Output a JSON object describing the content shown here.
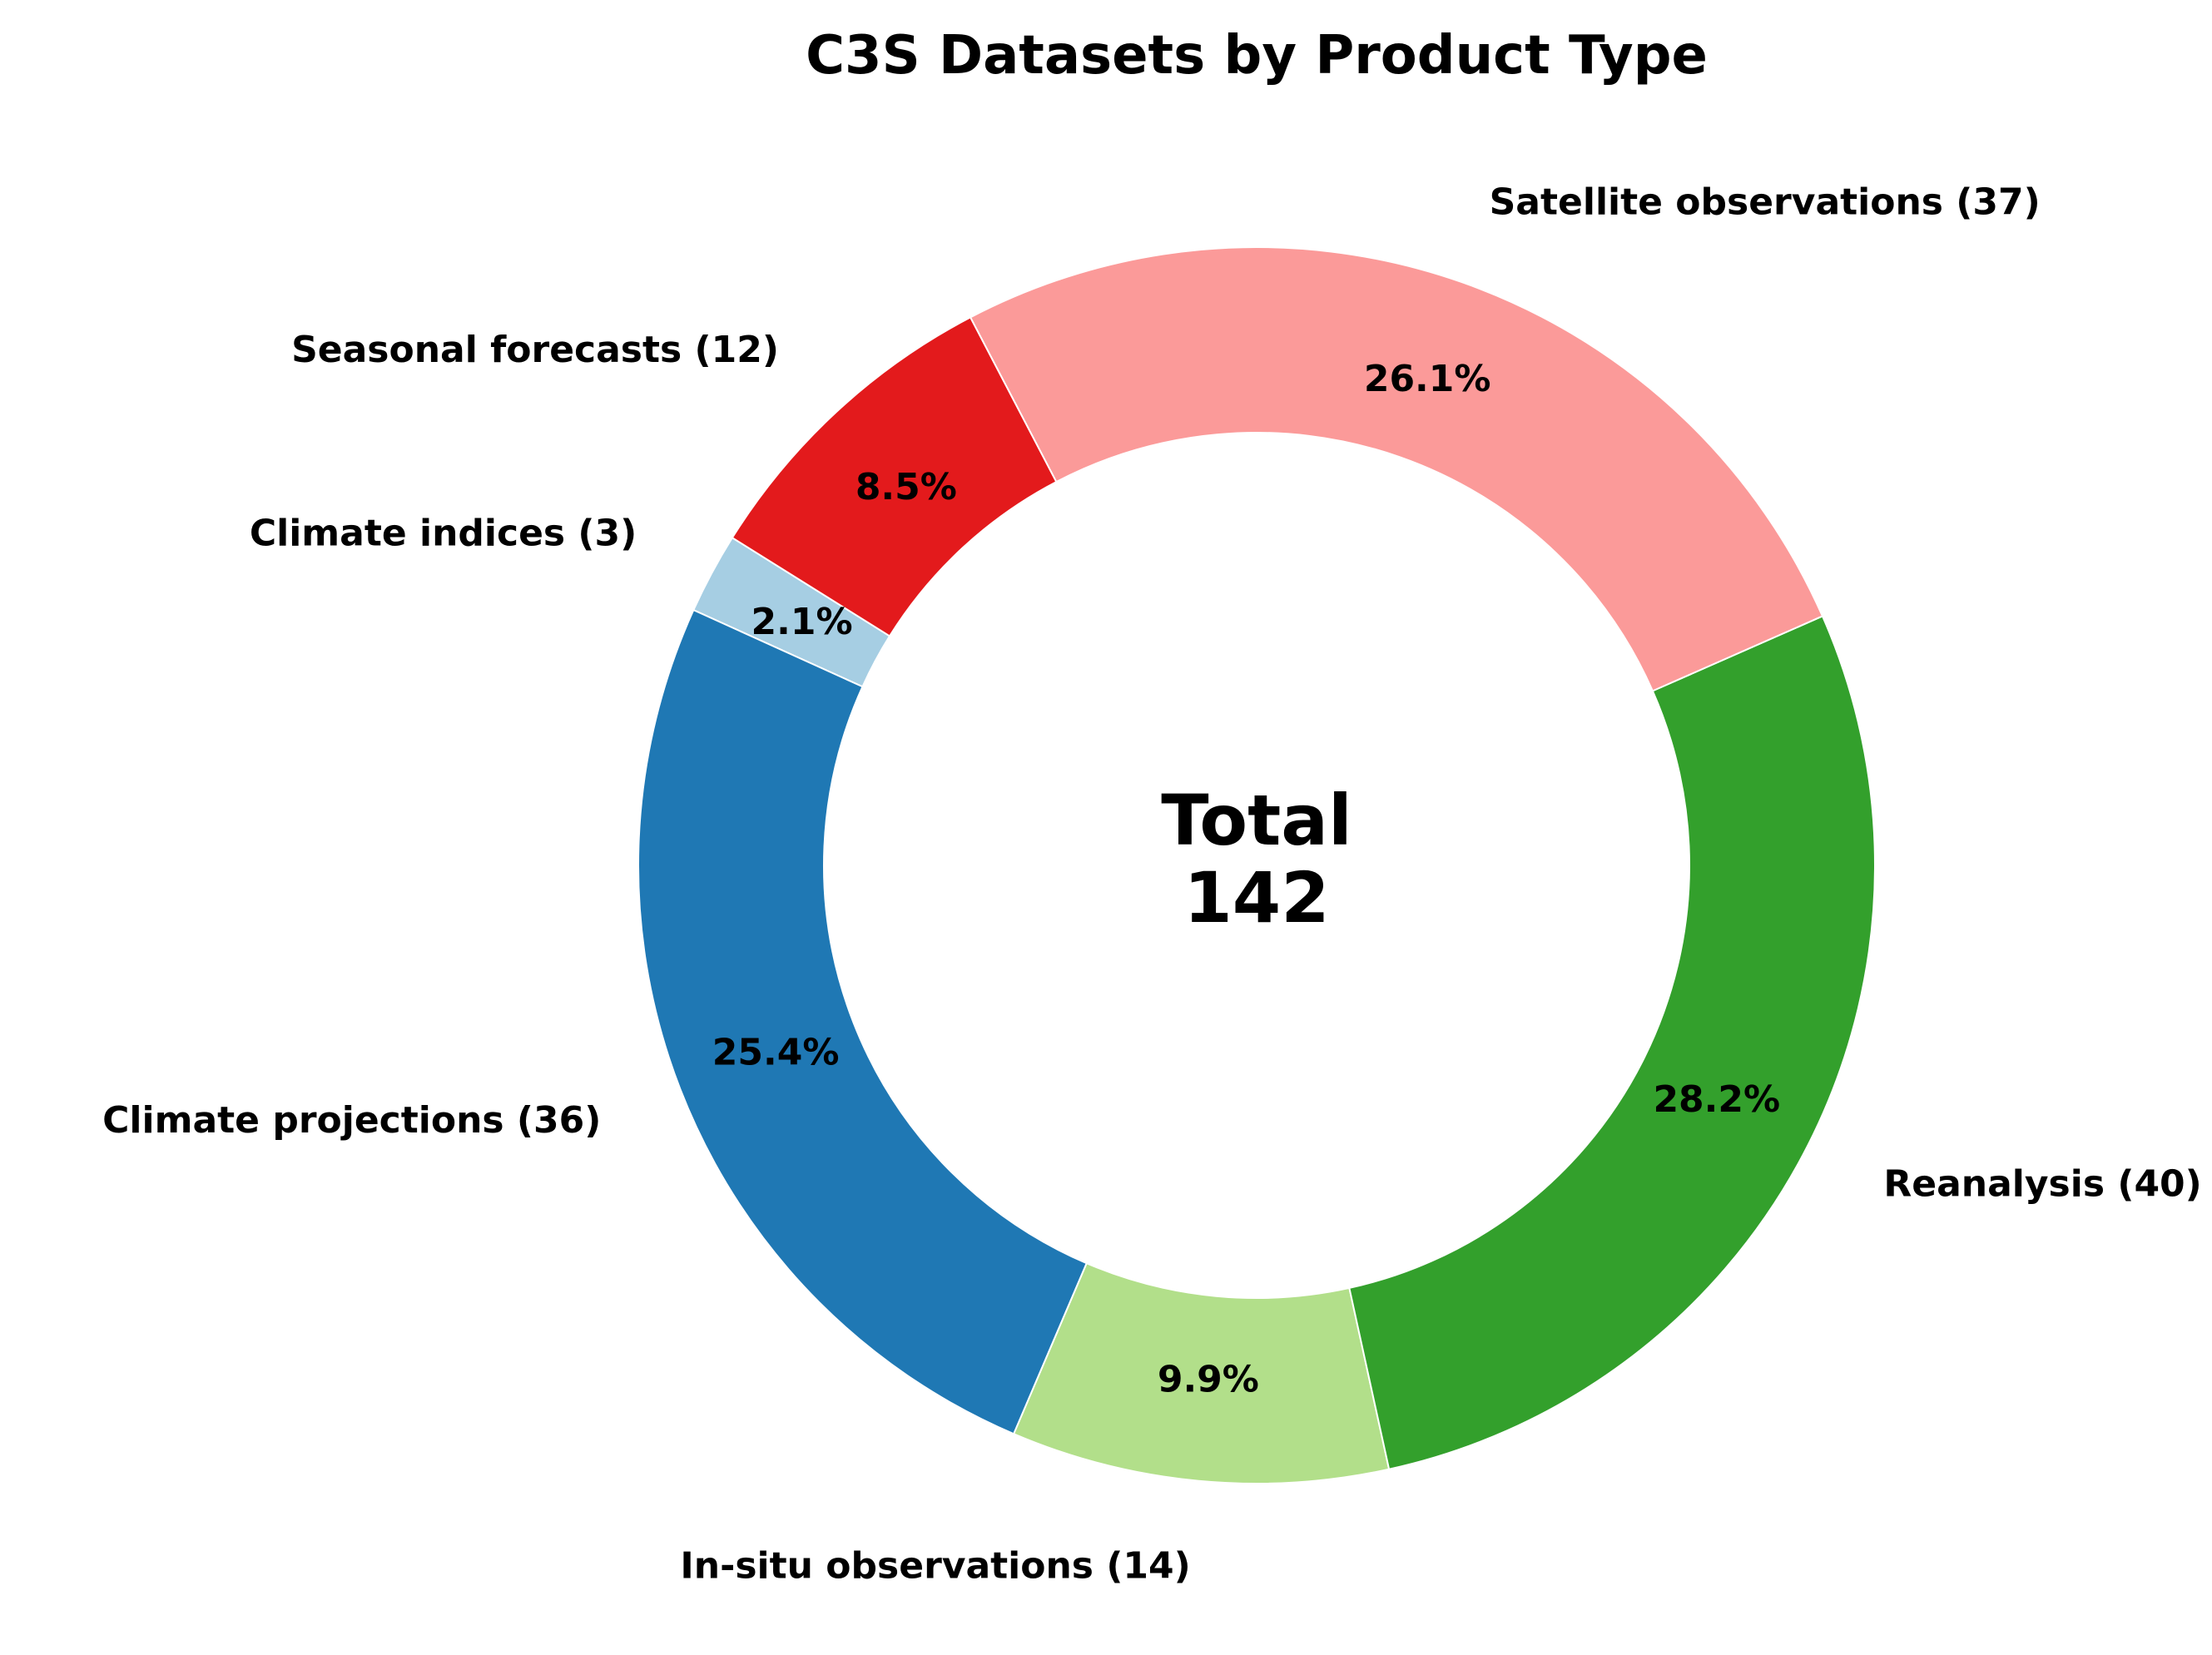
{
  "chart_data": {
    "type": "pie",
    "variant": "donut",
    "title": "C3S Datasets by Product Type",
    "center_label": "Total",
    "center_value": "142",
    "start_angle_deg": 148,
    "direction": "counterclockwise",
    "slices": [
      {
        "name": "Climate indices",
        "label": "Climate indices (3)",
        "value": 3,
        "pct_label": "2.1%",
        "color": "#a6cee3"
      },
      {
        "name": "Climate projections",
        "label": "Climate projections (36)",
        "value": 36,
        "pct_label": "25.4%",
        "color": "#1f78b4"
      },
      {
        "name": "In-situ observations",
        "label": "In-situ observations (14)",
        "value": 14,
        "pct_label": "9.9%",
        "color": "#b2df8a"
      },
      {
        "name": "Reanalysis",
        "label": "Reanalysis (40)",
        "value": 40,
        "pct_label": "28.2%",
        "color": "#33a02c"
      },
      {
        "name": "Satellite observations",
        "label": "Satellite observations (37)",
        "value": 37,
        "pct_label": "26.1%",
        "color": "#fb9a99"
      },
      {
        "name": "Seasonal forecasts",
        "label": "Seasonal forecasts (12)",
        "value": 12,
        "pct_label": "8.5%",
        "color": "#e31a1c"
      }
    ]
  }
}
